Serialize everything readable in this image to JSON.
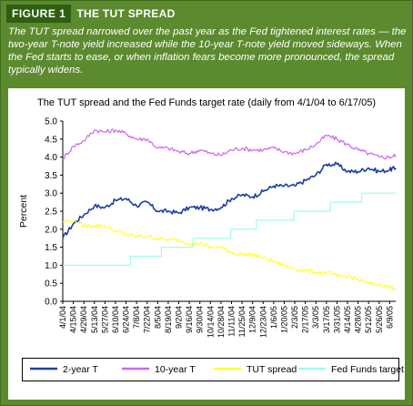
{
  "figure": {
    "label": "FIGURE 1",
    "title": "THE TUT SPREAD",
    "caption": "The TUT spread narrowed over the past year as the Fed tightened interest rates — the two-year T-note yield increased while the 10-year T-note yield moved sideways. When the Fed starts to ease, or when inflation fears become more pronounced, the spread typically widens."
  },
  "chart_data": {
    "type": "line",
    "title": "The TUT spread and the Fed Funds target rate (daily from 4/1/04 to 6/17/05)",
    "ylabel": "Percent",
    "xlabel": "",
    "ylim": [
      0.0,
      5.0
    ],
    "yticks": [
      "0.0",
      "0.5",
      "1.0",
      "1.5",
      "2.0",
      "2.5",
      "3.0",
      "3.5",
      "4.0",
      "4.5",
      "5.0"
    ],
    "x_tick_labels": [
      "4/1/04",
      "4/15/04",
      "4/29/04",
      "5/13/04",
      "5/27/04",
      "6/10/04",
      "6/24/04",
      "7/8/04",
      "7/22/04",
      "8/5/04",
      "8/19/04",
      "9/2/04",
      "9/16/04",
      "9/30/04",
      "10/14/04",
      "10/28/04",
      "11/11/04",
      "11/25/04",
      "12/9/04",
      "12/23/04",
      "1/6/05",
      "1/20/05",
      "2/3/05",
      "2/17/05",
      "3/3/05",
      "3/17/05",
      "3/31/05",
      "4/14/05",
      "4/28/05",
      "5/12/05",
      "5/26/05",
      "6/9/05"
    ],
    "grid": false,
    "legend_position": "bottom",
    "series": [
      {
        "name": "2-year T",
        "color": "#1f3f9f",
        "x": [
          "4/1/04",
          "4/15/04",
          "4/29/04",
          "5/13/04",
          "5/27/04",
          "6/10/04",
          "6/24/04",
          "7/8/04",
          "7/22/04",
          "8/5/04",
          "8/19/04",
          "9/2/04",
          "9/16/04",
          "9/30/04",
          "10/14/04",
          "10/28/04",
          "11/11/04",
          "11/25/04",
          "12/9/04",
          "12/23/04",
          "1/6/05",
          "1/20/05",
          "2/3/05",
          "2/17/05",
          "3/3/05",
          "3/17/05",
          "3/31/05",
          "4/14/05",
          "4/28/05",
          "5/12/05",
          "5/26/05",
          "6/9/05",
          "6/17/05"
        ],
        "values": [
          1.75,
          2.15,
          2.4,
          2.65,
          2.6,
          2.8,
          2.85,
          2.65,
          2.75,
          2.5,
          2.5,
          2.45,
          2.6,
          2.6,
          2.55,
          2.6,
          2.85,
          2.95,
          2.9,
          3.05,
          3.2,
          3.2,
          3.2,
          3.35,
          3.5,
          3.8,
          3.8,
          3.6,
          3.6,
          3.7,
          3.6,
          3.65,
          3.7
        ]
      },
      {
        "name": "10-year T",
        "color": "#cc66ee",
        "x": [
          "4/1/04",
          "4/15/04",
          "4/29/04",
          "5/13/04",
          "5/27/04",
          "6/10/04",
          "6/24/04",
          "7/8/04",
          "7/22/04",
          "8/5/04",
          "8/19/04",
          "9/2/04",
          "9/16/04",
          "9/30/04",
          "10/14/04",
          "10/28/04",
          "11/11/04",
          "11/25/04",
          "12/9/04",
          "12/23/04",
          "1/6/05",
          "1/20/05",
          "2/3/05",
          "2/17/05",
          "3/3/05",
          "3/17/05",
          "3/31/05",
          "4/14/05",
          "4/28/05",
          "5/12/05",
          "5/26/05",
          "6/9/05",
          "6/17/05"
        ],
        "values": [
          3.95,
          4.3,
          4.45,
          4.75,
          4.7,
          4.75,
          4.65,
          4.5,
          4.5,
          4.25,
          4.25,
          4.15,
          4.1,
          4.2,
          4.1,
          4.05,
          4.2,
          4.25,
          4.2,
          4.2,
          4.25,
          4.15,
          4.1,
          4.2,
          4.35,
          4.6,
          4.5,
          4.35,
          4.2,
          4.1,
          4.0,
          4.0,
          4.05
        ]
      },
      {
        "name": "TUT spread",
        "color": "#ffff33",
        "x": [
          "4/1/04",
          "4/15/04",
          "4/29/04",
          "5/13/04",
          "5/27/04",
          "6/10/04",
          "6/24/04",
          "7/8/04",
          "7/22/04",
          "8/5/04",
          "8/19/04",
          "9/2/04",
          "9/16/04",
          "9/30/04",
          "10/14/04",
          "10/28/04",
          "11/11/04",
          "11/25/04",
          "12/9/04",
          "12/23/04",
          "1/6/05",
          "1/20/05",
          "2/3/05",
          "2/17/05",
          "3/3/05",
          "3/17/05",
          "3/31/05",
          "4/14/05",
          "4/28/05",
          "5/12/05",
          "5/26/05",
          "6/9/05",
          "6/17/05"
        ],
        "values": [
          2.2,
          2.25,
          2.1,
          2.1,
          2.1,
          1.95,
          1.85,
          1.8,
          1.8,
          1.75,
          1.7,
          1.7,
          1.6,
          1.6,
          1.5,
          1.5,
          1.35,
          1.3,
          1.3,
          1.2,
          1.1,
          1.0,
          0.9,
          0.85,
          0.8,
          0.8,
          0.7,
          0.7,
          0.6,
          0.5,
          0.45,
          0.4,
          0.35
        ]
      },
      {
        "name": "Fed Funds target",
        "color": "#99ffee",
        "x": [
          "4/1/04",
          "6/30/04",
          "8/10/04",
          "9/21/04",
          "11/10/04",
          "12/14/04",
          "2/2/05",
          "3/22/05",
          "5/3/05",
          "6/17/05"
        ],
        "values": [
          1.0,
          1.25,
          1.5,
          1.75,
          2.0,
          2.25,
          2.5,
          2.75,
          3.0,
          3.0
        ]
      }
    ]
  }
}
